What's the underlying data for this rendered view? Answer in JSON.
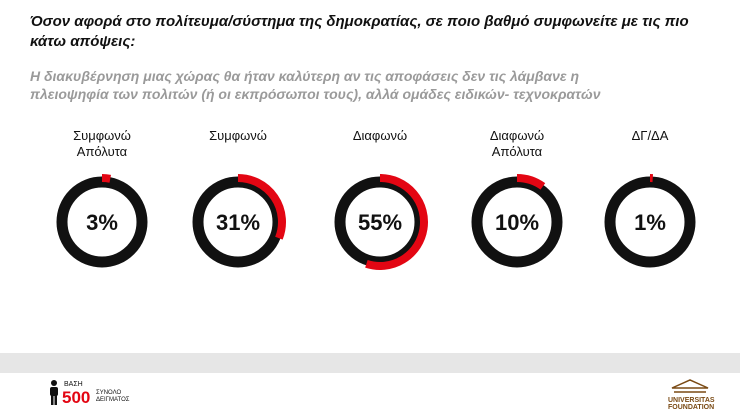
{
  "chart_data": {
    "type": "donut",
    "title": "Όσον αφορά στο πολίτευμα/σύστημα της δημοκρατίας, σε ποιο βαθμό συμφωνείτε με τις πιο κάτω απόψεις:",
    "subtitle": "Η διακυβέρνηση μιας χώρας θα ήταν καλύτερη αν τις αποφάσεις δεν τις λάμβανε η πλειοψηφία των πολιτών (ή οι εκπρόσωποι τους), αλλά ομάδες ειδικών- τεχνοκρατών",
    "categories": [
      "Συμφωνώ Απόλυτα",
      "Συμφωνώ",
      "Διαφωνώ",
      "Διαφωνώ Απόλυτα",
      "ΔΓ/ΔΑ"
    ],
    "values": [
      3,
      31,
      55,
      10,
      1
    ],
    "value_labels": [
      "3%",
      "31%",
      "55%",
      "10%",
      "1%"
    ],
    "color": "#e30613",
    "ring_color": "#111111"
  },
  "footer": {
    "base_label": "ΒΑΣΗ",
    "base_value": 500,
    "base_note": "ΣΥΝΟΛΟ ΔΕΙΓΜΑΤΟΣ",
    "logo": "UNIVERSITAS FOUNDATION"
  }
}
